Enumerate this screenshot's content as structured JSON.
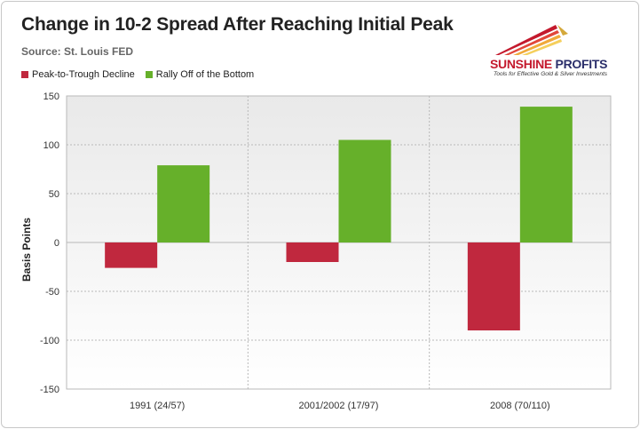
{
  "chart_data": {
    "type": "bar",
    "title": "Change in 10-2 Spread After Reaching Initial Peak",
    "subtitle": "Source: St. Louis FED",
    "ylabel": "Basis Points",
    "xlabel": "",
    "ylim": [
      -150,
      150
    ],
    "yticks": [
      150,
      100,
      50,
      0,
      -50,
      -100,
      -150
    ],
    "ytick_labels": [
      "150",
      "100",
      "50",
      "0",
      "-50",
      "-100",
      "-150"
    ],
    "categories": [
      "1991 (24/57)",
      "2001/2002 (17/97)",
      "2008 (70/110)"
    ],
    "series": [
      {
        "name": "Peak-to-Trough Decline",
        "color": "#c0283e",
        "values": [
          -26,
          -20,
          -90
        ]
      },
      {
        "name": "Rally Off of the Bottom",
        "color": "#66b02a",
        "values": [
          79,
          105,
          139
        ]
      }
    ],
    "legend_position": "top-left",
    "grid": true
  },
  "logo": {
    "name_part1": "SUNSHINE",
    "name_part2": " PROFITS",
    "tagline": "Tools for Effective Gold & Silver Investments"
  }
}
